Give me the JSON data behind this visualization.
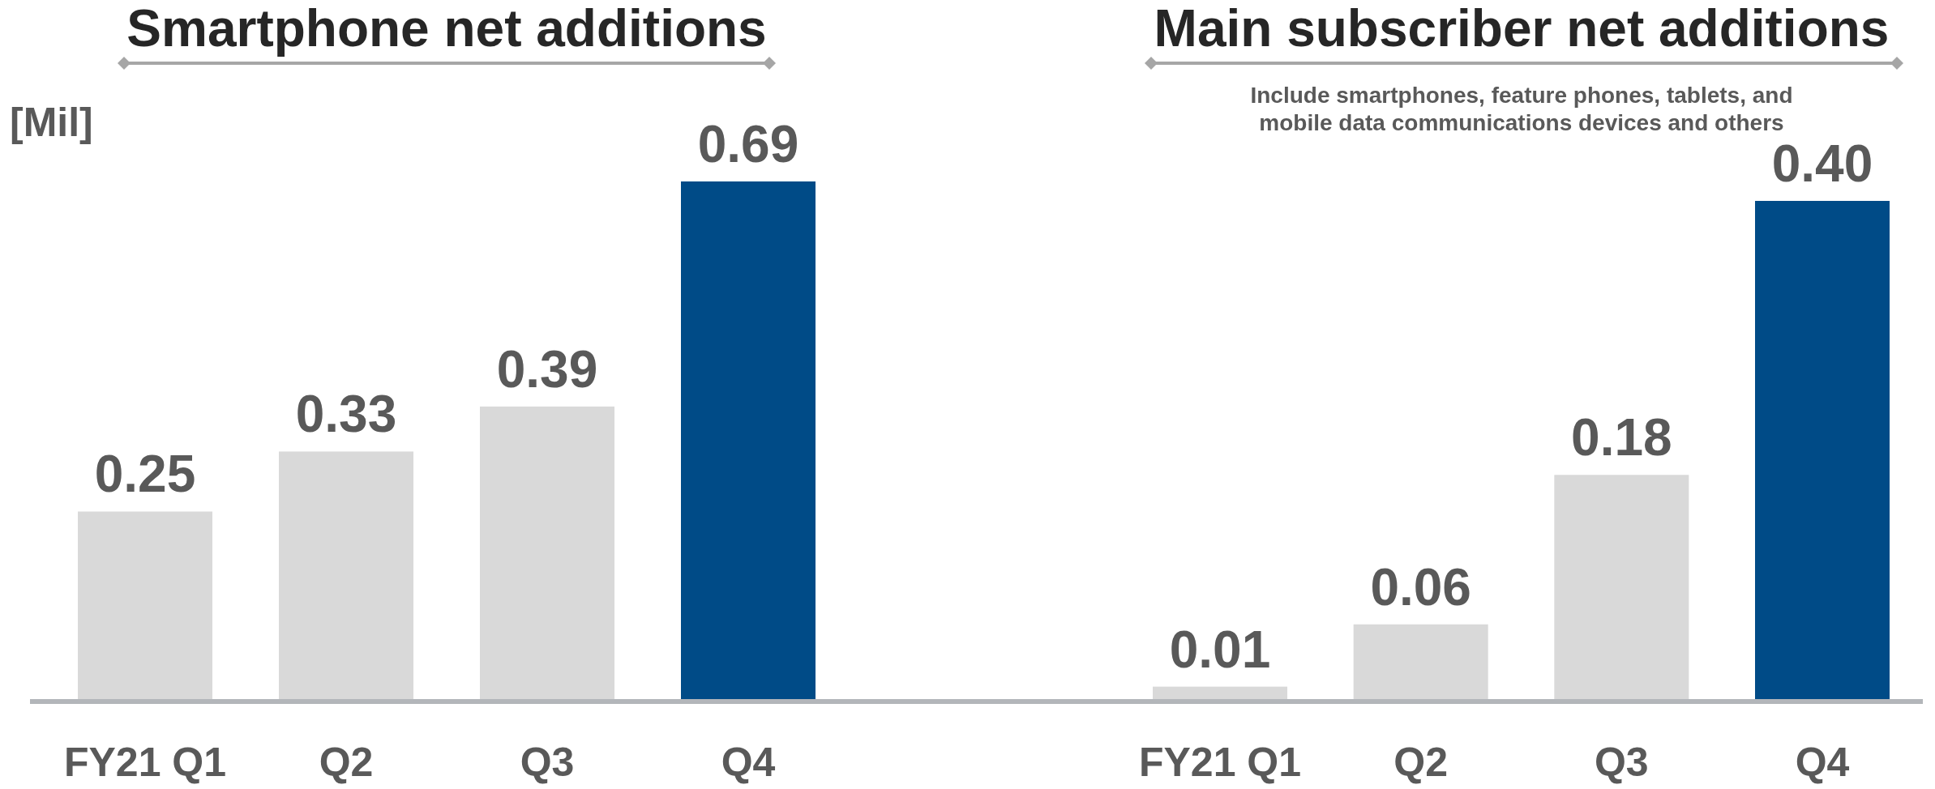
{
  "chart_data": [
    {
      "type": "bar",
      "title": "Smartphone net additions",
      "ylabel": "[Mil]",
      "categories": [
        "FY21 Q1",
        "Q2",
        "Q3",
        "Q4"
      ],
      "values": [
        0.25,
        0.33,
        0.39,
        0.69
      ],
      "value_labels": [
        "0.25",
        "0.33",
        "0.39",
        "0.69"
      ],
      "colors": [
        "#d9d9d9",
        "#d9d9d9",
        "#d9d9d9",
        "#004b87"
      ]
    },
    {
      "type": "bar",
      "title": "Main subscriber net additions",
      "subtitle": "Include smartphones, feature phones, tablets, and mobile data communications devices and others",
      "categories": [
        "FY21 Q1",
        "Q2",
        "Q3",
        "Q4"
      ],
      "values": [
        0.01,
        0.06,
        0.18,
        0.4
      ],
      "value_labels": [
        "0.01",
        "0.06",
        "0.18",
        "0.40"
      ],
      "colors": [
        "#d9d9d9",
        "#d9d9d9",
        "#d9d9d9",
        "#004b87"
      ]
    }
  ]
}
